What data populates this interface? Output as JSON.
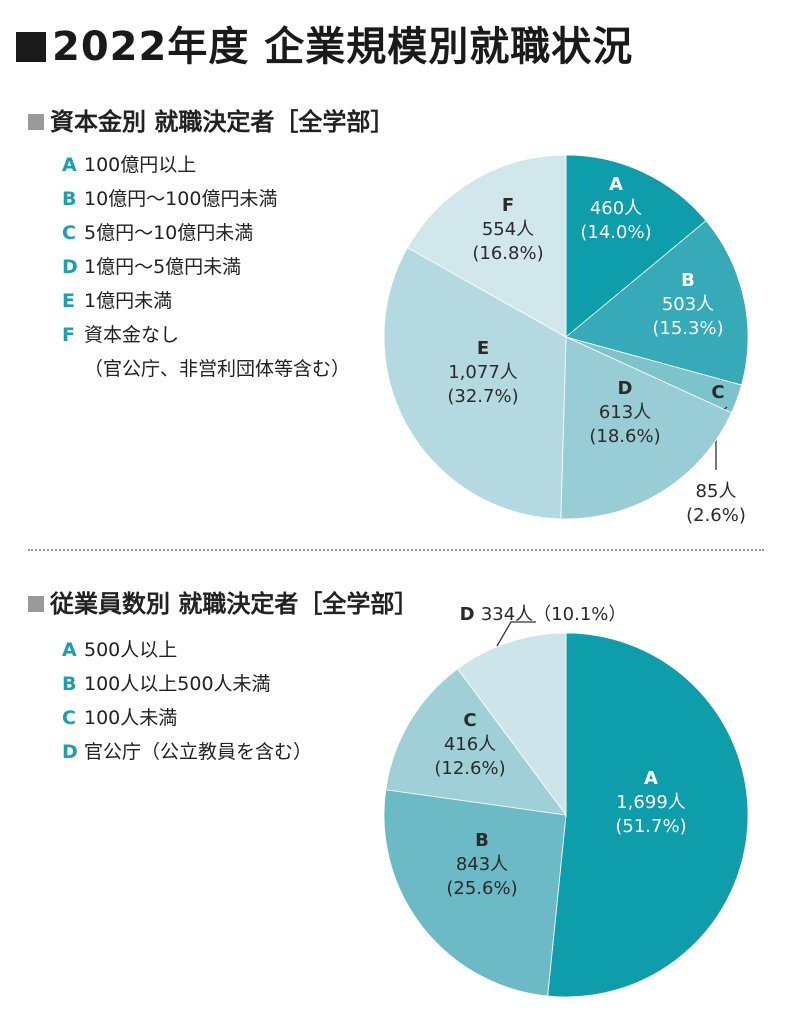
{
  "title": "2022年度 企業規模別就職状況",
  "colors": {
    "accent": "#1aa0b0",
    "pie1": [
      "#0e9daa",
      "#36aab8",
      "#7dc3cc",
      "#98cdd6",
      "#b4d9e0",
      "#d2e7ec"
    ],
    "pie2": [
      "#0e9daa",
      "#6cbac5",
      "#9fd0d8",
      "#cde5ea"
    ]
  },
  "section1": {
    "title": "資本金別 就職決定者［全学部］",
    "legend": [
      {
        "key": "A",
        "label": "100億円以上"
      },
      {
        "key": "B",
        "label": "10億円〜100億円未満"
      },
      {
        "key": "C",
        "label": "5億円〜10億円未満"
      },
      {
        "key": "D",
        "label": "1億円〜5億円未満"
      },
      {
        "key": "E",
        "label": "1億円未満"
      },
      {
        "key": "F",
        "label": "資本金なし",
        "sub": "（官公庁、非営利団体等含む）"
      }
    ]
  },
  "section2": {
    "title": "従業員数別 就職決定者［全学部］",
    "legend": [
      {
        "key": "A",
        "label": "500人以上"
      },
      {
        "key": "B",
        "label": "100人以上500人未満"
      },
      {
        "key": "C",
        "label": "100人未満"
      },
      {
        "key": "D",
        "label": "官公庁（公立教員を含む）"
      }
    ]
  },
  "chart_data": [
    {
      "type": "pie",
      "title": "資本金別 就職決定者［全学部］",
      "categories": [
        "A",
        "B",
        "C",
        "D",
        "E",
        "F"
      ],
      "values": [
        460,
        503,
        85,
        613,
        1077,
        554
      ],
      "value_labels": [
        "460人",
        "503人",
        "85人",
        "613人",
        "1,077人",
        "554人"
      ],
      "percent_labels": [
        "(14.0%)",
        "(15.3%)",
        "(2.6%)",
        "(18.6%)",
        "(32.7%)",
        "(16.8%)"
      ]
    },
    {
      "type": "pie",
      "title": "従業員数別 就職決定者［全学部］",
      "categories": [
        "A",
        "B",
        "C",
        "D"
      ],
      "values": [
        1699,
        843,
        416,
        334
      ],
      "value_labels": [
        "1,699人",
        "843人",
        "416人",
        "334人"
      ],
      "percent_labels": [
        "(51.7%)",
        "(25.6%)",
        "(12.6%)",
        "(10.1%)"
      ]
    }
  ]
}
